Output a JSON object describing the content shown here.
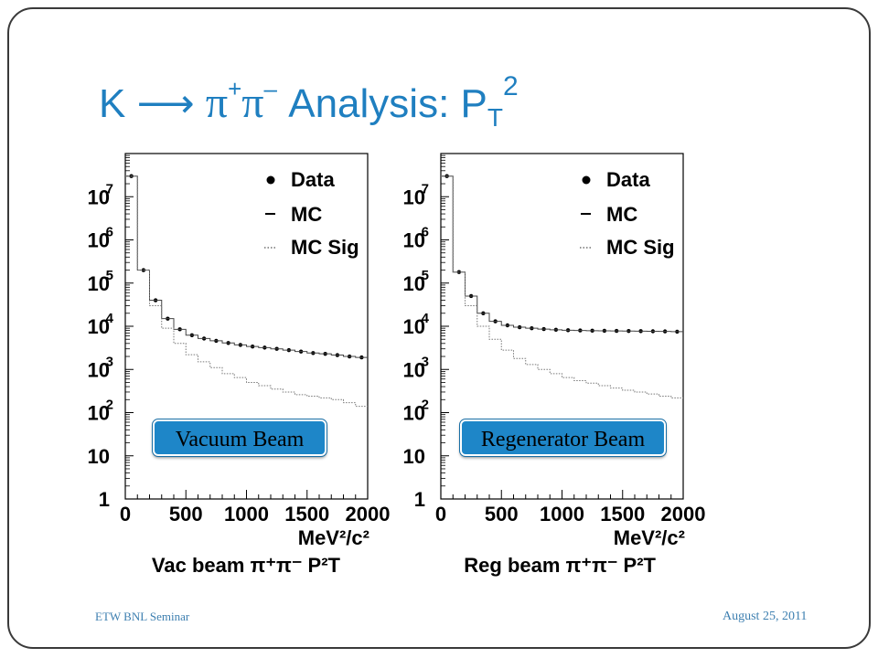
{
  "slide": {
    "title_prefix": "K ⟶ ",
    "title_pi": "π",
    "title_plus": "+",
    "title_minus": "–",
    "title_analysis": " Analysis: P",
    "title_sub": "T",
    "title_sup": "2",
    "footer_left": "ETW BNL Seminar",
    "footer_right": "August 25, 2011",
    "accent_color": "#1f7fc0",
    "badge_color": "#1e86c8"
  },
  "chart_data": [
    {
      "type": "line",
      "badge": "Vacuum Beam",
      "xlabel_unit": "MeV²/c²",
      "xlabel": "Vac beam π⁺π⁻ P²T",
      "xlim": [
        0,
        2000
      ],
      "ylim": [
        1,
        100000000
      ],
      "log_y": true,
      "x_ticks": [
        "0",
        "500",
        "1000",
        "1500",
        "2000"
      ],
      "y_ticks": [
        {
          "base": "1",
          "exp": ""
        },
        {
          "base": "10",
          "exp": ""
        },
        {
          "base": "10",
          "exp": "2"
        },
        {
          "base": "10",
          "exp": "3"
        },
        {
          "base": "10",
          "exp": "4"
        },
        {
          "base": "10",
          "exp": "5"
        },
        {
          "base": "10",
          "exp": "6"
        },
        {
          "base": "10",
          "exp": "7"
        }
      ],
      "legend": [
        {
          "label": "Data",
          "marker": "•"
        },
        {
          "label": "MC",
          "marker": "–"
        },
        {
          "label": "MC Sig",
          "marker": "···"
        }
      ],
      "bin_edges": [
        0,
        100,
        200,
        300,
        400,
        500,
        600,
        700,
        800,
        900,
        1000,
        1100,
        1200,
        1300,
        1400,
        1500,
        1600,
        1700,
        1800,
        1900,
        2000
      ],
      "series": [
        {
          "name": "Data",
          "style": "points",
          "values": [
            30000000,
            200000,
            40000,
            15000,
            8500,
            6200,
            5200,
            4600,
            4100,
            3700,
            3400,
            3200,
            3000,
            2800,
            2600,
            2400,
            2300,
            2150,
            2000,
            1900
          ]
        },
        {
          "name": "MC",
          "style": "solid-step",
          "values": [
            30000000,
            200000,
            40000,
            15000,
            8500,
            6200,
            5200,
            4600,
            4100,
            3700,
            3400,
            3200,
            3000,
            2800,
            2600,
            2400,
            2300,
            2150,
            2000,
            1900
          ]
        },
        {
          "name": "MC Sig",
          "style": "dotted-step",
          "values": [
            30000000,
            200000,
            30000,
            9000,
            4000,
            2200,
            1500,
            1100,
            800,
            650,
            500,
            420,
            350,
            300,
            260,
            240,
            220,
            200,
            170,
            140
          ]
        }
      ]
    },
    {
      "type": "line",
      "badge": "Regenerator Beam",
      "xlabel_unit": "MeV²/c²",
      "xlabel": "Reg beam π⁺π⁻ P²T",
      "xlim": [
        0,
        2000
      ],
      "ylim": [
        1,
        100000000
      ],
      "log_y": true,
      "x_ticks": [
        "0",
        "500",
        "1000",
        "1500",
        "2000"
      ],
      "y_ticks": [
        {
          "base": "1",
          "exp": ""
        },
        {
          "base": "10",
          "exp": ""
        },
        {
          "base": "10",
          "exp": "2"
        },
        {
          "base": "10",
          "exp": "3"
        },
        {
          "base": "10",
          "exp": "4"
        },
        {
          "base": "10",
          "exp": "5"
        },
        {
          "base": "10",
          "exp": "6"
        },
        {
          "base": "10",
          "exp": "7"
        }
      ],
      "legend": [
        {
          "label": "Data",
          "marker": "•"
        },
        {
          "label": "MC",
          "marker": "–"
        },
        {
          "label": "MC Sig",
          "marker": "···"
        }
      ],
      "bin_edges": [
        0,
        100,
        200,
        300,
        400,
        500,
        600,
        700,
        800,
        900,
        1000,
        1100,
        1200,
        1300,
        1400,
        1500,
        1600,
        1700,
        1800,
        1900,
        2000
      ],
      "series": [
        {
          "name": "Data",
          "style": "points",
          "values": [
            30000000,
            180000,
            50000,
            20000,
            13000,
            10500,
            9500,
            9000,
            8600,
            8300,
            8100,
            8000,
            7900,
            7850,
            7800,
            7750,
            7700,
            7650,
            7600,
            7500
          ]
        },
        {
          "name": "MC",
          "style": "solid-step",
          "values": [
            30000000,
            180000,
            50000,
            20000,
            13000,
            10500,
            9500,
            9000,
            8600,
            8300,
            8100,
            8000,
            7900,
            7850,
            7800,
            7750,
            7700,
            7650,
            7600,
            7500
          ]
        },
        {
          "name": "MC Sig",
          "style": "dotted-step",
          "values": [
            30000000,
            180000,
            30000,
            10000,
            5000,
            2800,
            1800,
            1300,
            1000,
            800,
            650,
            550,
            480,
            420,
            370,
            330,
            300,
            270,
            240,
            220
          ]
        }
      ]
    }
  ]
}
